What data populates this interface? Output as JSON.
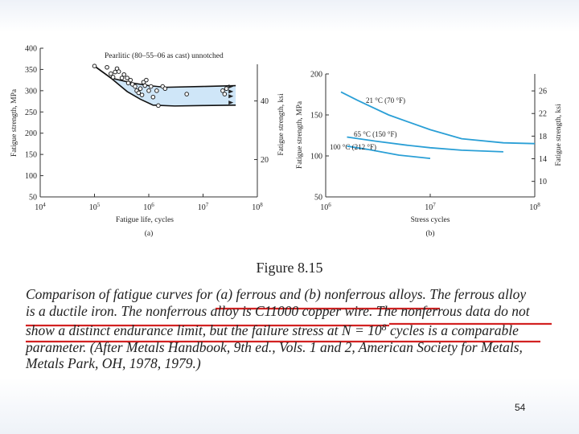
{
  "figure_label": "Figure 8.15",
  "caption": {
    "line1": "Comparison of fatigue curves for (a) ferrous and (b) nonferrous alloys. The ferrous alloy",
    "line2": "is a ductile iron. The nonferrous alloy is C11000 copper wire. The nonferrous data do not",
    "line3_before": "show a distinct endurance limit, but the failure stress at N = 10",
    "line3_sup": "8",
    "line3_after": " cycles is a comparable",
    "line4": "parameter. (After Metals Handbook, 9th ed., Vols. 1 and 2, American Society for Metals,",
    "line5": "Metals Park, OH, 1978, 1979.)"
  },
  "page_number": "54",
  "colors": {
    "band_fill": "#cfe6f8",
    "curve": "#2a9fd6",
    "underline": "#d22222",
    "axis": "#333333"
  },
  "chart_data": [
    {
      "type": "scatter",
      "panel_label": "(a)",
      "annotation": "Pearlitic (80–55–06 as cast) unnotched",
      "xlabel": "Fatigue life, cycles",
      "ylabel": "Fatigue strength, MPa",
      "y2label": "Fatigue strength, ksi",
      "x_scale": "log",
      "xlim": [
        10000,
        100000000
      ],
      "ylim": [
        50,
        400
      ],
      "y2lim": [
        7.25,
        58
      ],
      "x_tick_exponents": [
        4,
        5,
        6,
        7,
        8
      ],
      "x_tick_base": "10",
      "y_ticks": [
        50,
        100,
        150,
        200,
        250,
        300,
        350,
        400
      ],
      "y2_ticks": [
        20,
        40
      ],
      "band_upper": [
        [
          100000,
          358
        ],
        [
          200000,
          330
        ],
        [
          500000,
          318
        ],
        [
          1000000,
          312
        ],
        [
          2000000,
          308
        ],
        [
          10000000,
          310
        ],
        [
          40000000,
          312
        ]
      ],
      "band_lower": [
        [
          100000,
          358
        ],
        [
          200000,
          330
        ],
        [
          400000,
          298
        ],
        [
          700000,
          280
        ],
        [
          1200000,
          266
        ],
        [
          3000000,
          264
        ],
        [
          10000000,
          265
        ],
        [
          40000000,
          266
        ]
      ],
      "points": [
        [
          100000,
          358
        ],
        [
          170000,
          355
        ],
        [
          200000,
          340
        ],
        [
          220000,
          332
        ],
        [
          240000,
          344
        ],
        [
          260000,
          352
        ],
        [
          280000,
          345
        ],
        [
          320000,
          330
        ],
        [
          350000,
          338
        ],
        [
          400000,
          330
        ],
        [
          420000,
          318
        ],
        [
          460000,
          325
        ],
        [
          500000,
          315
        ],
        [
          560000,
          310
        ],
        [
          600000,
          300
        ],
        [
          650000,
          295
        ],
        [
          700000,
          305
        ],
        [
          750000,
          290
        ],
        [
          800000,
          320
        ],
        [
          850000,
          312
        ],
        [
          900000,
          325
        ],
        [
          1000000,
          300
        ],
        [
          1100000,
          310
        ],
        [
          1200000,
          285
        ],
        [
          1400000,
          300
        ],
        [
          1500000,
          265
        ],
        [
          1800000,
          310
        ],
        [
          2000000,
          305
        ],
        [
          5000000,
          292
        ],
        [
          23000000,
          300
        ],
        [
          25000000,
          292
        ],
        [
          27000000,
          305
        ]
      ],
      "runouts": [
        [
          35000000,
          310
        ],
        [
          35000000,
          298
        ],
        [
          35000000,
          287
        ],
        [
          35000000,
          272
        ]
      ]
    },
    {
      "type": "line",
      "panel_label": "(b)",
      "xlabel": "Stress cycles",
      "ylabel": "Fatigue strength, MPa",
      "y2label": "Fatigue strength, ksi",
      "x_scale": "log",
      "xlim": [
        1000000,
        100000000
      ],
      "ylim": [
        50,
        200
      ],
      "y2lim": [
        7.25,
        29
      ],
      "x_tick_exponents": [
        6,
        7,
        8
      ],
      "x_tick_base": "10",
      "y_ticks": [
        50,
        100,
        150,
        200
      ],
      "y2_ticks": [
        10,
        14,
        18,
        22,
        26
      ],
      "series": [
        {
          "name": "21 °C (70 °F)",
          "x": [
            1400000,
            2000000,
            4000000,
            10000000,
            20000000,
            50000000,
            100000000
          ],
          "y": [
            178,
            168,
            150,
            132,
            121,
            116,
            115
          ]
        },
        {
          "name": "65 °C (150 °F)",
          "x": [
            1600000,
            3000000,
            6000000,
            10000000,
            20000000,
            50000000
          ],
          "y": [
            123,
            118,
            113,
            110,
            107,
            105
          ]
        },
        {
          "name": "100 °C (212 °F)",
          "x": [
            1600000,
            2500000,
            5000000,
            10000000
          ],
          "y": [
            112,
            108,
            101,
            97
          ]
        }
      ]
    }
  ]
}
